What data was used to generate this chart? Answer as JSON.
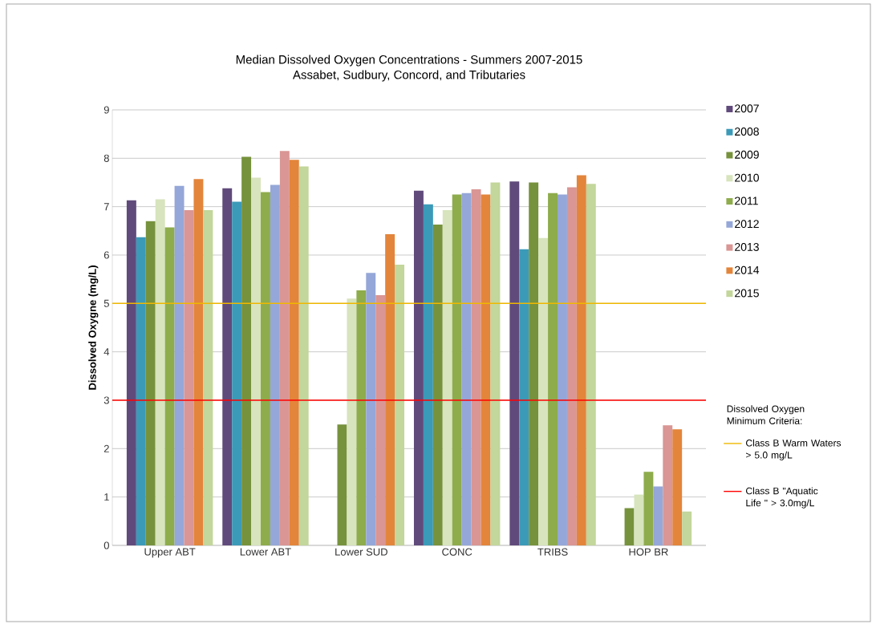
{
  "chart_data": {
    "type": "bar",
    "title": "Median Dissolved Oxygen Concentrations - Summers 2007-2015",
    "subtitle": "Assabet, Sudbury, Concord, and Tributaries",
    "ylabel": "Dissolved Oxygne (mg/L)",
    "categories": [
      "Upper ABT",
      "Lower ABT",
      "Lower SUD",
      "CONC",
      "TRIBS",
      "HOP BR"
    ],
    "series": [
      {
        "name": "2007",
        "color": "#604a7b",
        "values": [
          7.13,
          7.38,
          null,
          7.33,
          7.52,
          null
        ]
      },
      {
        "name": "2008",
        "color": "#3b9ab8",
        "values": [
          6.37,
          7.1,
          null,
          7.05,
          6.12,
          null
        ]
      },
      {
        "name": "2009",
        "color": "#76923c",
        "values": [
          6.7,
          8.03,
          2.5,
          6.63,
          7.5,
          0.77
        ]
      },
      {
        "name": "2010",
        "color": "#d7e4bd",
        "values": [
          7.15,
          7.6,
          5.1,
          6.93,
          6.35,
          1.05
        ]
      },
      {
        "name": "2011",
        "color": "#8eac4c",
        "values": [
          6.57,
          7.3,
          5.27,
          7.25,
          7.28,
          1.52
        ]
      },
      {
        "name": "2012",
        "color": "#95a7d8",
        "values": [
          7.43,
          7.45,
          5.63,
          7.28,
          7.25,
          1.22
        ]
      },
      {
        "name": "2013",
        "color": "#d99694",
        "values": [
          6.93,
          8.15,
          5.17,
          7.36,
          7.4,
          2.48
        ]
      },
      {
        "name": "2014",
        "color": "#e3853b",
        "values": [
          7.57,
          7.97,
          6.43,
          7.25,
          7.65,
          2.4
        ]
      },
      {
        "name": "2015",
        "color": "#c3d69b",
        "values": [
          6.93,
          7.83,
          5.8,
          7.5,
          7.47,
          0.7
        ]
      }
    ],
    "ylim": [
      0,
      9
    ],
    "yticks": [
      0,
      1,
      2,
      3,
      4,
      5,
      6,
      7,
      8,
      9
    ],
    "grid": "y",
    "legend": "right",
    "ref_lines": [
      {
        "axis": "y",
        "value": 5,
        "label": "Class B  Warm Waters > 5.0 mg/L",
        "color": "#f0b800"
      },
      {
        "axis": "y",
        "value": 3,
        "label": "Class B \"Aquatic Life \" > 3.0mg/L",
        "color": "#ff0000"
      }
    ],
    "annotations": [
      "Dissolved Oxygen Minimum Criteria:"
    ]
  }
}
